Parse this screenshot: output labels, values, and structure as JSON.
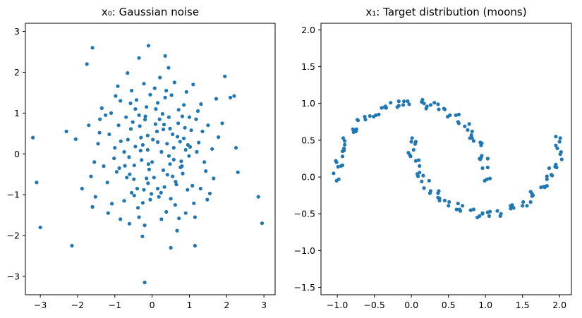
{
  "page": {
    "background": "#ffffff"
  },
  "chart_data": [
    {
      "type": "scatter",
      "title": "x₀: Gaussian noise",
      "color": "#1f77b4",
      "grid": false,
      "xlim": [
        -3.4,
        3.3
      ],
      "ylim": [
        -3.45,
        3.2
      ],
      "xticks": {
        "values": [
          -3,
          -2,
          -1,
          0,
          1,
          2,
          3
        ],
        "labels": [
          "−3",
          "−2",
          "−1",
          "0",
          "1",
          "2",
          "3"
        ]
      },
      "yticks": {
        "values": [
          -3,
          -2,
          -1,
          0,
          1,
          2,
          3
        ],
        "labels": [
          "−3",
          "−2",
          "−1",
          "0",
          "1",
          "2",
          "3"
        ]
      },
      "points": [
        [
          -0.12,
          0.45
        ],
        [
          0.33,
          -0.81
        ],
        [
          1.02,
          0.17
        ],
        [
          -0.58,
          1.24
        ],
        [
          0.76,
          -0.33
        ],
        [
          -1.41,
          0.52
        ],
        [
          0.21,
          1.87
        ],
        [
          -0.05,
          -1.12
        ],
        [
          0.88,
          0.64
        ],
        [
          -0.73,
          -0.29
        ],
        [
          1.55,
          -0.97
        ],
        [
          -0.31,
          0.08
        ],
        [
          0.44,
          2.11
        ],
        [
          -1.18,
          -1.45
        ],
        [
          0.09,
          0.73
        ],
        [
          0.67,
          -1.88
        ],
        [
          -2.05,
          0.36
        ],
        [
          1.23,
          1.05
        ],
        [
          -0.49,
          -0.62
        ],
        [
          0.15,
          0.29
        ],
        [
          -0.92,
          1.66
        ],
        [
          0.58,
          -0.14
        ],
        [
          1.78,
          0.41
        ],
        [
          -0.26,
          -2.02
        ],
        [
          0.35,
          1.38
        ],
        [
          -1.64,
          -0.55
        ],
        [
          0.81,
          0.92
        ],
        [
          -0.08,
          -0.38
        ],
        [
          1.12,
          -1.21
        ],
        [
          -0.57,
          0.61
        ],
        [
          0.24,
          -0.95
        ],
        [
          -1.35,
          1.12
        ],
        [
          0.96,
          0.22
        ],
        [
          0.41,
          -0.51
        ],
        [
          -0.66,
          1.98
        ],
        [
          1.44,
          -0.42
        ],
        [
          -0.19,
          0.84
        ],
        [
          0.72,
          -1.58
        ],
        [
          -1.02,
          -0.11
        ],
        [
          0.13,
          0.55
        ],
        [
          -0.38,
          -1.32
        ],
        [
          1.88,
          0.75
        ],
        [
          -0.84,
          0.31
        ],
        [
          0.52,
          1.44
        ],
        [
          -0.11,
          -0.72
        ],
        [
          0.99,
          -0.05
        ],
        [
          -1.52,
          -1.05
        ],
        [
          0.28,
          0.98
        ],
        [
          0.63,
          -0.68
        ],
        [
          -0.45,
          0.18
        ],
        [
          1.31,
          1.22
        ],
        [
          -0.22,
          -0.88
        ],
        [
          0.07,
          1.61
        ],
        [
          -0.95,
          -0.44
        ],
        [
          0.85,
          0.38
        ],
        [
          -0.61,
          -1.71
        ],
        [
          1.61,
          0.12
        ],
        [
          -0.33,
          0.68
        ],
        [
          0.48,
          -0.25
        ],
        [
          -1.25,
          0.95
        ],
        [
          0.18,
          -1.05
        ],
        [
          0.92,
          1.52
        ],
        [
          -0.75,
          0.05
        ],
        [
          1.08,
          -0.78
        ],
        [
          -0.15,
          1.15
        ],
        [
          0.55,
          0.48
        ],
        [
          -1.88,
          -0.85
        ],
        [
          0.38,
          -1.42
        ],
        [
          -0.52,
          0.78
        ],
        [
          1.25,
          0.28
        ],
        [
          -0.28,
          -0.15
        ],
        [
          0.71,
          1.08
        ],
        [
          -1.08,
          -1.22
        ],
        [
          0.02,
          0.35
        ],
        [
          0.82,
          -0.48
        ],
        [
          -0.42,
          1.32
        ],
        [
          1.48,
          -1.12
        ],
        [
          -0.68,
          -0.58
        ],
        [
          0.25,
          0.05
        ],
        [
          -0.02,
          -0.98
        ],
        [
          1.05,
          0.58
        ],
        [
          -1.45,
          0.25
        ],
        [
          0.62,
          -1.25
        ],
        [
          -0.18,
          0.92
        ],
        [
          0.45,
          -0.05
        ],
        [
          -0.88,
          -0.35
        ],
        [
          1.72,
          1.35
        ],
        [
          -0.35,
          -1.55
        ],
        [
          0.15,
          1.25
        ],
        [
          -0.62,
          -0.08
        ],
        [
          0.95,
          -0.88
        ],
        [
          -1.15,
          0.48
        ],
        [
          0.32,
          0.72
        ],
        [
          0.78,
          -0.18
        ],
        [
          -0.48,
          -1.02
        ],
        [
          1.18,
          0.85
        ],
        [
          -0.25,
          0.22
        ],
        [
          0.05,
          -0.58
        ],
        [
          -0.98,
          1.42
        ],
        [
          0.58,
          0.15
        ],
        [
          0.3,
          0.6
        ],
        [
          -0.7,
          0.9
        ],
        [
          1.35,
          0.55
        ],
        [
          -0.2,
          -1.75
        ],
        [
          0.6,
          1.75
        ],
        [
          -1.3,
          -0.3
        ],
        [
          0.9,
          -1.45
        ],
        [
          -0.55,
          1.55
        ],
        [
          1.5,
          0.7
        ],
        [
          -0.1,
          -0.25
        ],
        [
          0.2,
          0.85
        ],
        [
          -1.7,
          0.7
        ],
        [
          0.75,
          0.3
        ],
        [
          -0.4,
          -0.85
        ],
        [
          1.1,
          1.7
        ],
        [
          -0.85,
          -1.6
        ],
        [
          0.4,
          0.25
        ],
        [
          -1.1,
          1.0
        ],
        [
          0.65,
          -0.75
        ],
        [
          -0.3,
          0.4
        ],
        [
          1.4,
          -0.2
        ],
        [
          -0.6,
          -0.5
        ],
        [
          0.1,
          1.1
        ],
        [
          -1.55,
          -0.2
        ],
        [
          0.85,
          1.2
        ],
        [
          -0.15,
          -0.6
        ],
        [
          0.5,
          -1.1
        ],
        [
          -0.9,
          0.7
        ],
        [
          1.2,
          0.05
        ],
        [
          -0.45,
          1.1
        ],
        [
          0.0,
          -0.2
        ],
        [
          0.7,
          0.75
        ],
        [
          -1.2,
          -0.7
        ],
        [
          0.3,
          -0.4
        ],
        [
          -0.05,
          1.45
        ],
        [
          1.65,
          -0.6
        ],
        [
          -0.75,
          -1.15
        ],
        [
          0.45,
          0.9
        ],
        [
          -0.25,
          -1.2
        ],
        [
          0.9,
          0.1
        ],
        [
          -1.0,
          0.15
        ],
        [
          0.55,
          -0.55
        ],
        [
          -0.35,
          0.95
        ],
        [
          1.3,
          -0.85
        ],
        [
          -0.65,
          0.35
        ],
        [
          0.25,
          -1.6
        ],
        [
          -1.4,
          0.85
        ],
        [
          0.8,
          -0.3
        ],
        [
          -0.12,
          0.1
        ],
        [
          0.38,
          1.55
        ],
        [
          -0.55,
          -0.95
        ],
        [
          1.0,
          0.9
        ],
        [
          -0.85,
          1.3
        ],
        [
          0.15,
          -0.85
        ],
        [
          0.68,
          0.42
        ],
        [
          -1.6,
          -1.3
        ],
        [
          0.48,
          0.62
        ],
        [
          -0.22,
          1.72
        ],
        [
          1.15,
          -1.55
        ],
        [
          -0.48,
          -0.28
        ],
        [
          -3.2,
          0.4
        ],
        [
          -3.1,
          -0.7
        ],
        [
          -3.0,
          -1.8
        ],
        [
          -2.15,
          -2.25
        ],
        [
          -0.2,
          -3.15
        ],
        [
          -1.6,
          2.6
        ],
        [
          -0.1,
          2.65
        ],
        [
          -0.35,
          2.35
        ],
        [
          2.95,
          -1.7
        ],
        [
          2.85,
          -1.05
        ],
        [
          2.2,
          1.42
        ],
        [
          2.1,
          1.38
        ],
        [
          1.15,
          -2.25
        ],
        [
          0.5,
          -2.3
        ],
        [
          2.25,
          0.15
        ],
        [
          2.3,
          -0.45
        ],
        [
          -2.3,
          0.55
        ],
        [
          1.95,
          1.9
        ],
        [
          0.35,
          2.4
        ],
        [
          -1.75,
          2.2
        ]
      ]
    },
    {
      "type": "scatter",
      "title": "x₁: Target distribution (moons)",
      "color": "#1f77b4",
      "grid": false,
      "xlim": [
        -1.22,
        2.16
      ],
      "ylim": [
        -1.6,
        2.09
      ],
      "xticks": {
        "values": [
          -1.0,
          -0.5,
          0.0,
          0.5,
          1.0,
          1.5,
          2.0
        ],
        "labels": [
          "−1.0",
          "−0.5",
          "0.0",
          "0.5",
          "1.0",
          "1.5",
          "2.0"
        ]
      },
      "yticks": {
        "values": [
          -1.5,
          -1.0,
          -0.5,
          0.0,
          0.5,
          1.0,
          1.5,
          2.0
        ],
        "labels": [
          "−1.5",
          "−1.0",
          "−0.5",
          "0.0",
          "0.5",
          "1.0",
          "1.5",
          "2.0"
        ]
      },
      "points": [
        [
          1.02,
          -0.03
        ],
        [
          0.96,
          0.12
        ],
        [
          1.03,
          0.25
        ],
        [
          0.94,
          0.26
        ],
        [
          0.94,
          0.43
        ],
        [
          0.82,
          0.53
        ],
        [
          0.81,
          0.57
        ],
        [
          0.78,
          0.72
        ],
        [
          0.64,
          0.73
        ],
        [
          0.6,
          0.84
        ],
        [
          0.52,
          0.84
        ],
        [
          0.37,
          0.92
        ],
        [
          0.36,
          0.99
        ],
        [
          0.2,
          0.93
        ],
        [
          0.14,
          1.02
        ],
        [
          -0.05,
          1.03
        ],
        [
          -0.11,
          0.98
        ],
        [
          -0.17,
          1.03
        ],
        [
          -0.34,
          0.94
        ],
        [
          -0.4,
          0.94
        ],
        [
          -0.48,
          0.84
        ],
        [
          -0.63,
          0.82
        ],
        [
          -0.62,
          0.78
        ],
        [
          -0.75,
          0.62
        ],
        [
          -0.78,
          0.61
        ],
        [
          -0.92,
          0.53
        ],
        [
          -0.91,
          0.39
        ],
        [
          -0.91,
          0.36
        ],
        [
          -1.01,
          0.2
        ],
        [
          -0.99,
          0.14
        ],
        [
          -0.98,
          -0.03
        ],
        [
          0.99,
          -0.05
        ],
        [
          1.03,
          0.13
        ],
        [
          0.93,
          0.24
        ],
        [
          0.95,
          0.29
        ],
        [
          0.95,
          0.46
        ],
        [
          0.84,
          0.49
        ],
        [
          0.82,
          0.62
        ],
        [
          0.76,
          0.64
        ],
        [
          0.63,
          0.75
        ],
        [
          0.64,
          0.85
        ],
        [
          0.49,
          0.82
        ],
        [
          0.44,
          0.93
        ],
        [
          0.26,
          0.98
        ],
        [
          0.21,
          0.96
        ],
        [
          0.15,
          1.05
        ],
        [
          -0.03,
          0.99
        ],
        [
          -0.1,
          1.03
        ],
        [
          -0.19,
          0.95
        ],
        [
          -0.35,
          0.96
        ],
        [
          -0.36,
          0.95
        ],
        [
          -0.51,
          0.82
        ],
        [
          -0.56,
          0.83
        ],
        [
          -0.72,
          0.77
        ],
        [
          -0.74,
          0.65
        ],
        [
          -0.77,
          0.64
        ],
        [
          -0.9,
          0.49
        ],
        [
          -0.9,
          0.44
        ],
        [
          -0.93,
          0.28
        ],
        [
          -1.02,
          0.22
        ],
        [
          -0.95,
          0.15
        ],
        [
          -1.01,
          -0.05
        ],
        [
          1.06,
          -0.02
        ],
        [
          0.92,
          0.25
        ],
        [
          0.93,
          0.47
        ],
        [
          0.79,
          0.53
        ],
        [
          0.72,
          0.69
        ],
        [
          0.45,
          0.92
        ],
        [
          0.31,
          1.01
        ],
        [
          0.17,
          1.0
        ],
        [
          -0.17,
          0.97
        ],
        [
          -0.28,
          1.01
        ],
        [
          -0.44,
          0.85
        ],
        [
          -0.73,
          0.78
        ],
        [
          -0.79,
          0.65
        ],
        [
          -0.93,
          0.35
        ],
        [
          -0.93,
          0.16
        ],
        [
          -1.05,
          0.05
        ],
        [
          0.0,
          0.48
        ],
        [
          0.05,
          0.45
        ],
        [
          -0.01,
          0.28
        ],
        [
          0.06,
          0.22
        ],
        [
          0.11,
          0.06
        ],
        [
          0.09,
          0.01
        ],
        [
          0.24,
          -0.05
        ],
        [
          0.25,
          -0.22
        ],
        [
          0.36,
          -0.22
        ],
        [
          0.36,
          -0.28
        ],
        [
          0.5,
          -0.39
        ],
        [
          0.63,
          -0.36
        ],
        [
          0.66,
          -0.46
        ],
        [
          0.8,
          -0.45
        ],
        [
          0.92,
          -0.53
        ],
        [
          0.96,
          -0.49
        ],
        [
          1.16,
          -0.46
        ],
        [
          1.2,
          -0.53
        ],
        [
          1.34,
          -0.43
        ],
        [
          1.36,
          -0.38
        ],
        [
          1.5,
          -0.39
        ],
        [
          1.63,
          -0.26
        ],
        [
          1.64,
          -0.25
        ],
        [
          1.75,
          -0.14
        ],
        [
          1.83,
          -0.12
        ],
        [
          1.83,
          0.01
        ],
        [
          1.96,
          0.13
        ],
        [
          1.94,
          0.14
        ],
        [
          2.01,
          0.31
        ],
        [
          1.95,
          0.43
        ],
        [
          2.0,
          0.48
        ],
        [
          0.01,
          0.53
        ],
        [
          0.03,
          0.37
        ],
        [
          -0.02,
          0.3
        ],
        [
          0.1,
          0.23
        ],
        [
          0.08,
          0.04
        ],
        [
          0.16,
          0.02
        ],
        [
          0.14,
          -0.06
        ],
        [
          0.26,
          -0.19
        ],
        [
          0.37,
          -0.19
        ],
        [
          0.38,
          -0.32
        ],
        [
          0.51,
          -0.34
        ],
        [
          0.61,
          -0.44
        ],
        [
          0.65,
          -0.44
        ],
        [
          0.84,
          -0.44
        ],
        [
          0.89,
          -0.55
        ],
        [
          1.03,
          -0.48
        ],
        [
          1.06,
          -0.47
        ],
        [
          1.21,
          -0.5
        ],
        [
          1.35,
          -0.4
        ],
        [
          1.38,
          -0.42
        ],
        [
          1.51,
          -0.34
        ],
        [
          1.61,
          -0.34
        ],
        [
          1.63,
          -0.23
        ],
        [
          1.79,
          -0.13
        ],
        [
          1.8,
          -0.14
        ],
        [
          1.9,
          0.02
        ],
        [
          1.86,
          0.12
        ],
        [
          1.95,
          0.17
        ],
        [
          2.02,
          0.34
        ],
        [
          1.97,
          0.39
        ],
        [
          2.01,
          0.53
        ],
        [
          0.06,
          0.48
        ],
        [
          -0.04,
          0.33
        ],
        [
          0.11,
          0.15
        ],
        [
          0.17,
          -0.15
        ],
        [
          0.38,
          -0.29
        ],
        [
          0.45,
          -0.32
        ],
        [
          0.69,
          -0.39
        ],
        [
          0.96,
          -0.5
        ],
        [
          1.05,
          -0.53
        ],
        [
          1.34,
          -0.39
        ],
        [
          1.56,
          -0.39
        ],
        [
          1.61,
          -0.2
        ],
        [
          1.83,
          -0.03
        ],
        [
          1.89,
          0.03
        ],
        [
          2.03,
          0.24
        ],
        [
          1.95,
          0.55
        ]
      ]
    }
  ]
}
